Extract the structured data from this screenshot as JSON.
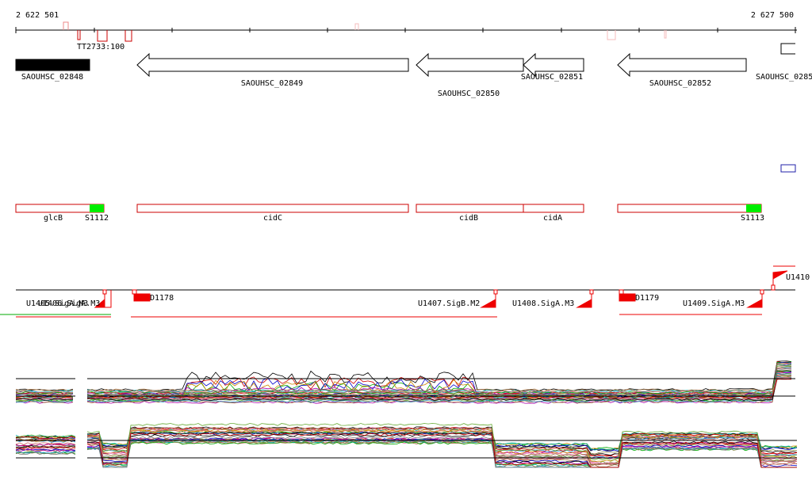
{
  "axis": {
    "start": "2 622 501",
    "end": "2 627 500"
  },
  "features": [
    "TT2733:100"
  ],
  "genes": [
    "SAOUHSC_02848",
    "SAOUHSC_02849",
    "SAOUHSC_02850",
    "SAOUHSC_02851",
    "SAOUHSC_02852",
    "SAOUHSC_0285"
  ],
  "operons": [
    "glcB",
    "S1112",
    "cidC",
    "cidB",
    "cidA",
    "S1113"
  ],
  "regulons": [
    "U1405.SigA.M3",
    "U1406.SigA.M3",
    "D1178",
    "U1407.SigB.M2",
    "U1408.SigA.M3",
    "D1179",
    "U1409.SigA.M3",
    "U1410"
  ]
}
